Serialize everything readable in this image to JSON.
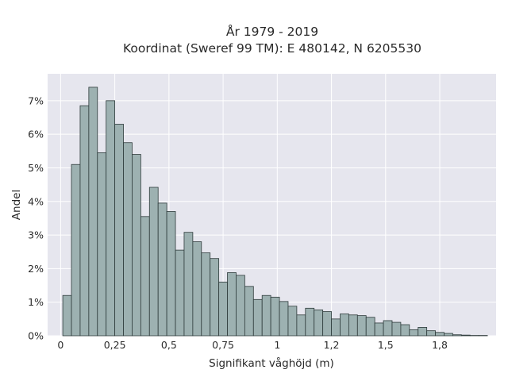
{
  "chart_data": {
    "type": "bar",
    "title_lines": [
      "År 1979 - 2019",
      "Koordinat (Sweref 99 TM): E 480142, N 6205530"
    ],
    "xlabel": "Signifikant våghöjd (m)",
    "ylabel": "Andel",
    "xlim": [
      -0.06,
      2.01
    ],
    "ylim": [
      0,
      7.8
    ],
    "x_ticks": [
      {
        "value": 0,
        "label": "0"
      },
      {
        "value": 0.25,
        "label": "0,25"
      },
      {
        "value": 0.5,
        "label": "0,5"
      },
      {
        "value": 0.75,
        "label": "0,75"
      },
      {
        "value": 1.0,
        "label": "1"
      },
      {
        "value": 1.25,
        "label": "1,2"
      },
      {
        "value": 1.5,
        "label": "1,5"
      },
      {
        "value": 1.75,
        "label": "1,8"
      }
    ],
    "y_ticks": [
      {
        "value": 0,
        "label": "0%"
      },
      {
        "value": 1,
        "label": "1%"
      },
      {
        "value": 2,
        "label": "2%"
      },
      {
        "value": 3,
        "label": "3%"
      },
      {
        "value": 4,
        "label": "4%"
      },
      {
        "value": 5,
        "label": "5%"
      },
      {
        "value": 6,
        "label": "6%"
      },
      {
        "value": 7,
        "label": "7%"
      }
    ],
    "grid": true,
    "bar_color": "#9db1b1",
    "bar_edge_color": "#2e3b3b",
    "plot_bg": "#e6e6ee",
    "bins": {
      "start": 0.01,
      "width": 0.04,
      "values": [
        1.2,
        5.1,
        6.85,
        7.4,
        5.45,
        7.0,
        6.3,
        5.75,
        5.4,
        3.55,
        4.42,
        3.95,
        3.7,
        2.55,
        3.08,
        2.8,
        2.47,
        2.3,
        1.6,
        1.88,
        1.8,
        1.47,
        1.08,
        1.2,
        1.15,
        1.02,
        0.88,
        0.62,
        0.82,
        0.77,
        0.72,
        0.5,
        0.65,
        0.62,
        0.6,
        0.55,
        0.38,
        0.45,
        0.4,
        0.33,
        0.18,
        0.25,
        0.15,
        0.1,
        0.07,
        0.03,
        0.02,
        0.01,
        0.01
      ]
    }
  }
}
